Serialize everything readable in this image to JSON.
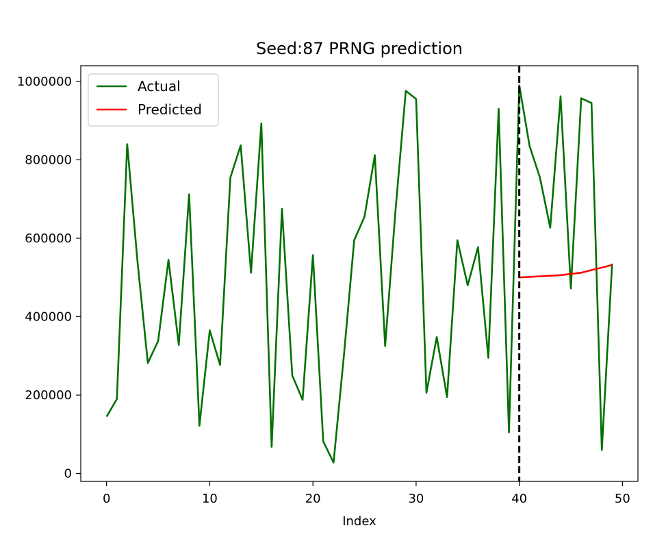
{
  "chart_data": {
    "type": "line",
    "title": "Seed:87 PRNG prediction",
    "xlabel": "Index",
    "ylabel": "",
    "xlim": [
      -2.5,
      51.5
    ],
    "ylim": [
      -20000,
      1040000
    ],
    "xticks": [
      0,
      10,
      20,
      30,
      40,
      50
    ],
    "yticks": [
      0,
      200000,
      400000,
      600000,
      800000,
      1000000
    ],
    "xtick_labels": [
      "0",
      "10",
      "20",
      "30",
      "40",
      "50"
    ],
    "ytick_labels": [
      "0",
      "200000",
      "400000",
      "600000",
      "800000",
      "1000000"
    ],
    "vline": {
      "x": 40,
      "style": "dashed",
      "color": "#000000"
    },
    "legend": {
      "position": "top-left"
    },
    "grid": false,
    "series": [
      {
        "name": "Actual",
        "color": "#007000",
        "x": [
          0,
          1,
          2,
          3,
          4,
          5,
          6,
          7,
          8,
          9,
          10,
          11,
          12,
          13,
          14,
          15,
          16,
          17,
          18,
          19,
          20,
          21,
          22,
          23,
          24,
          25,
          26,
          27,
          28,
          29,
          30,
          31,
          32,
          33,
          34,
          35,
          36,
          37,
          38,
          39,
          40,
          41,
          42,
          43,
          44,
          45,
          46,
          47,
          48,
          49
        ],
        "values": [
          145000,
          190000,
          840000,
          540000,
          282000,
          338000,
          545000,
          328000,
          712000,
          122000,
          365000,
          277000,
          755000,
          837000,
          512000,
          893000,
          68000,
          675000,
          250000,
          188000,
          557000,
          82000,
          28000,
          300000,
          595000,
          655000,
          812000,
          325000,
          670000,
          976000,
          955000,
          206000,
          348000,
          195000,
          595000,
          480000,
          577000,
          295000,
          930000,
          105000,
          990000,
          835000,
          755000,
          627000,
          962000,
          472000,
          957000,
          945000,
          60000,
          535000
        ]
      },
      {
        "name": "Predicted",
        "color": "#ff0000",
        "x": [
          40,
          41,
          42,
          43,
          44,
          45,
          46,
          47,
          48,
          49
        ],
        "values": [
          500000,
          501500,
          503000,
          504500,
          506000,
          509000,
          512000,
          519000,
          525000,
          532000
        ]
      }
    ]
  }
}
